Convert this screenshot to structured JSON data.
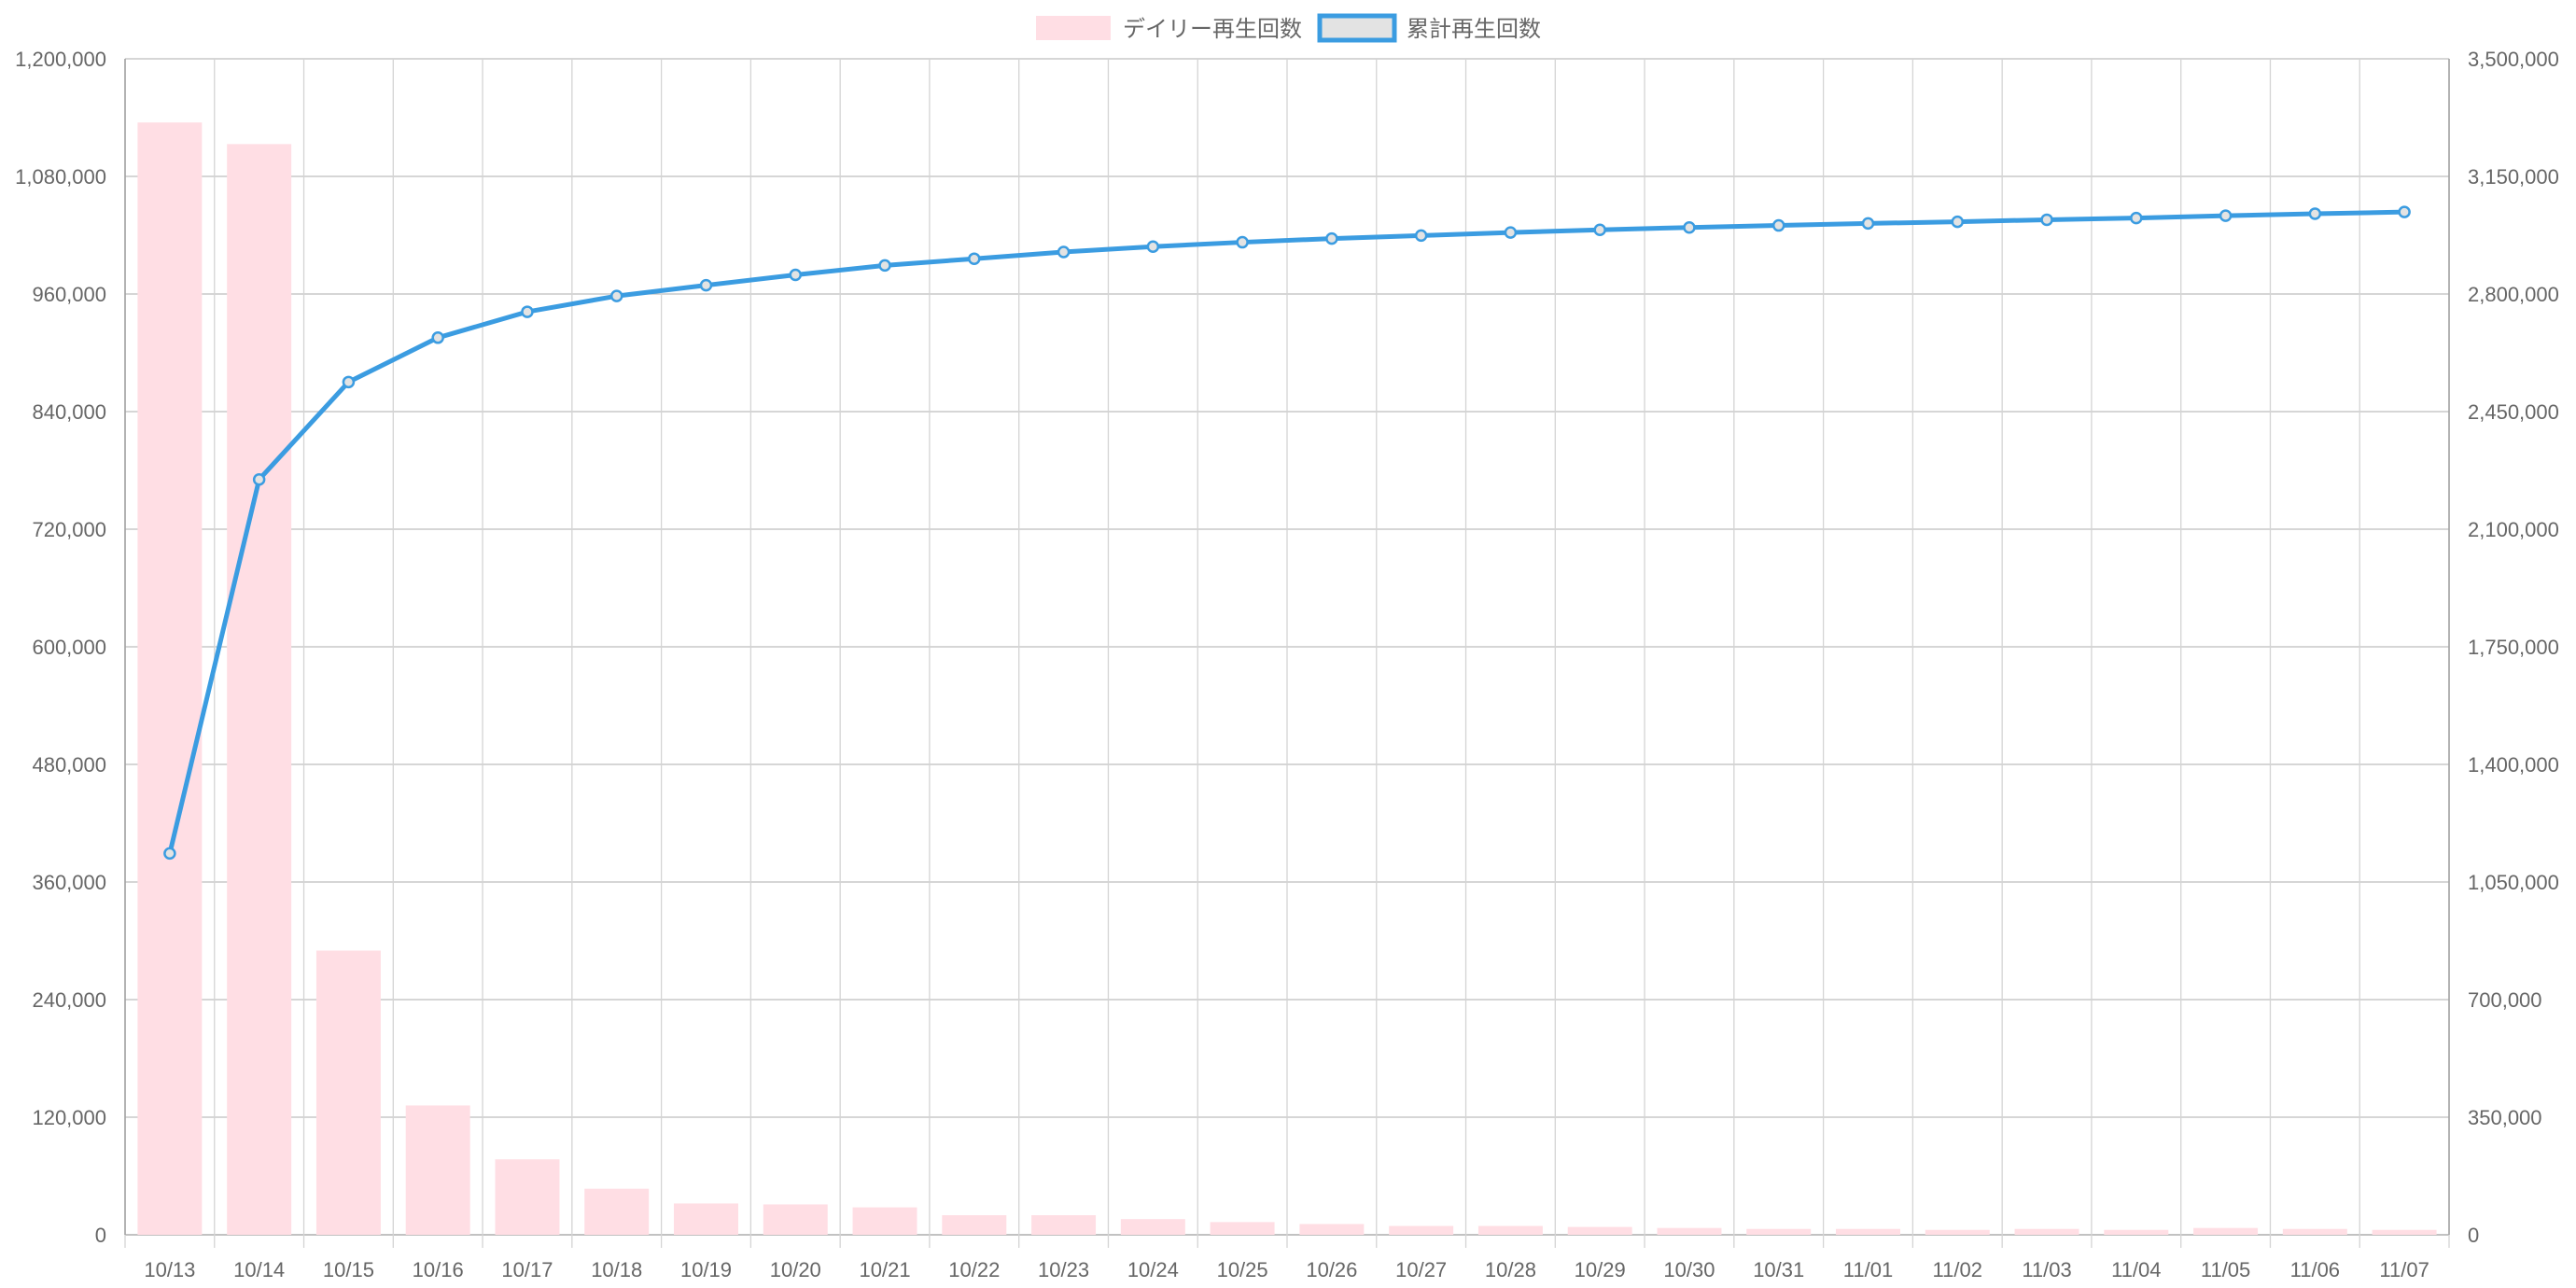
{
  "legend": {
    "daily_label": "デイリー再生回数",
    "cumulative_label": "累計再生回数"
  },
  "colors": {
    "daily_bar": "#ffdee4",
    "cumulative_line": "#3b9ce1",
    "cumulative_fill": "#e3e3e3",
    "grid": "#d4d4d4",
    "grid_major": "#bdbdbd",
    "tick_text": "#666666"
  },
  "chart_data": {
    "type": "bar",
    "categories": [
      "10/13",
      "10/14",
      "10/15",
      "10/16",
      "10/17",
      "10/18",
      "10/19",
      "10/20",
      "10/21",
      "10/22",
      "10/23",
      "10/24",
      "10/25",
      "10/26",
      "10/27",
      "10/28",
      "10/29",
      "10/30",
      "10/31",
      "11/01",
      "11/02",
      "11/03",
      "11/04",
      "11/05",
      "11/06",
      "11/07"
    ],
    "series": [
      {
        "name": "デイリー再生回数",
        "type": "bar",
        "axis": "left",
        "values": [
          1135000,
          1113000,
          290000,
          132000,
          77000,
          47000,
          32000,
          31000,
          28000,
          20000,
          20000,
          16000,
          13000,
          11000,
          9000,
          9000,
          8000,
          7000,
          6000,
          6000,
          5000,
          6000,
          5000,
          7000,
          6000,
          5000
        ]
      },
      {
        "name": "累計再生回数",
        "type": "line",
        "axis": "right",
        "values": [
          1135000,
          2248000,
          2538000,
          2670000,
          2747000,
          2794000,
          2826000,
          2857000,
          2885000,
          2905000,
          2925000,
          2941000,
          2954000,
          2965000,
          2974000,
          2983000,
          2991000,
          2998000,
          3004000,
          3010000,
          3015000,
          3021000,
          3026000,
          3033000,
          3039000,
          3044000
        ]
      }
    ],
    "yleft": {
      "min": 0,
      "max": 1200000,
      "ticks": [
        0,
        120000,
        240000,
        360000,
        480000,
        600000,
        720000,
        840000,
        960000,
        1080000,
        1200000
      ],
      "tick_labels": [
        "0",
        "120,000",
        "240,000",
        "360,000",
        "480,000",
        "600,000",
        "720,000",
        "840,000",
        "960,000",
        "1,080,000",
        "1,200,000"
      ]
    },
    "yright": {
      "min": 0,
      "max": 3500000,
      "ticks": [
        0,
        350000,
        700000,
        1050000,
        1400000,
        1750000,
        2100000,
        2450000,
        2800000,
        3150000,
        3500000
      ],
      "tick_labels": [
        "0",
        "350,000",
        "700,000",
        "1,050,000",
        "1,400,000",
        "1,750,000",
        "2,100,000",
        "2,450,000",
        "2,800,000",
        "3,150,000",
        "3,500,000"
      ]
    },
    "legend_position": "top-center",
    "grid": true
  }
}
